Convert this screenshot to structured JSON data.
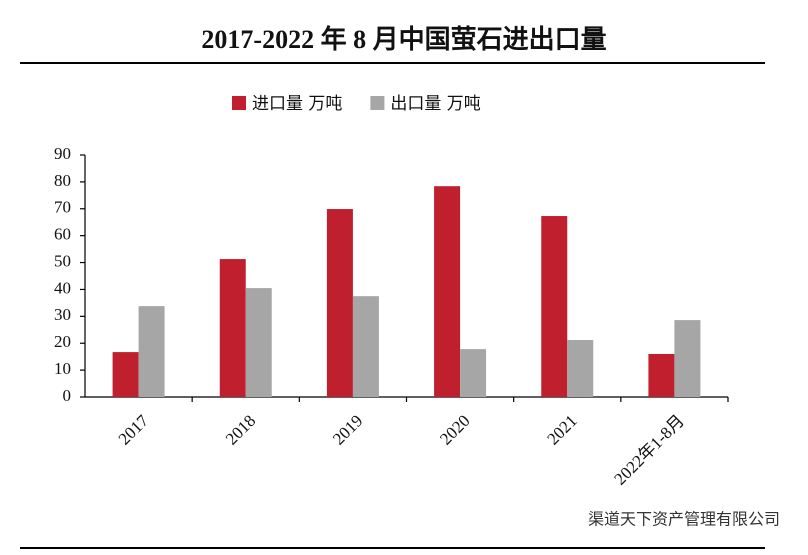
{
  "chart_data": {
    "type": "bar",
    "title": "2017-2022 年 8 月中国萤石进出口量",
    "categories": [
      "2017",
      "2018",
      "2019",
      "2020",
      "2021",
      "2022年1-8月"
    ],
    "series": [
      {
        "name": "进口量 万吨",
        "color": "#c0202e",
        "values": [
          16.7,
          51.3,
          69.9,
          78.4,
          67.3,
          16.0
        ]
      },
      {
        "name": "出口量 万吨",
        "color": "#a6a6a6",
        "values": [
          33.8,
          40.5,
          37.5,
          17.8,
          21.2,
          28.6
        ]
      }
    ],
    "ylim": [
      0,
      90
    ],
    "yticks": [
      0,
      10,
      20,
      30,
      40,
      50,
      60,
      70,
      80,
      90
    ],
    "grid": false,
    "watermark": "渠道天下资产管理有限公司"
  }
}
